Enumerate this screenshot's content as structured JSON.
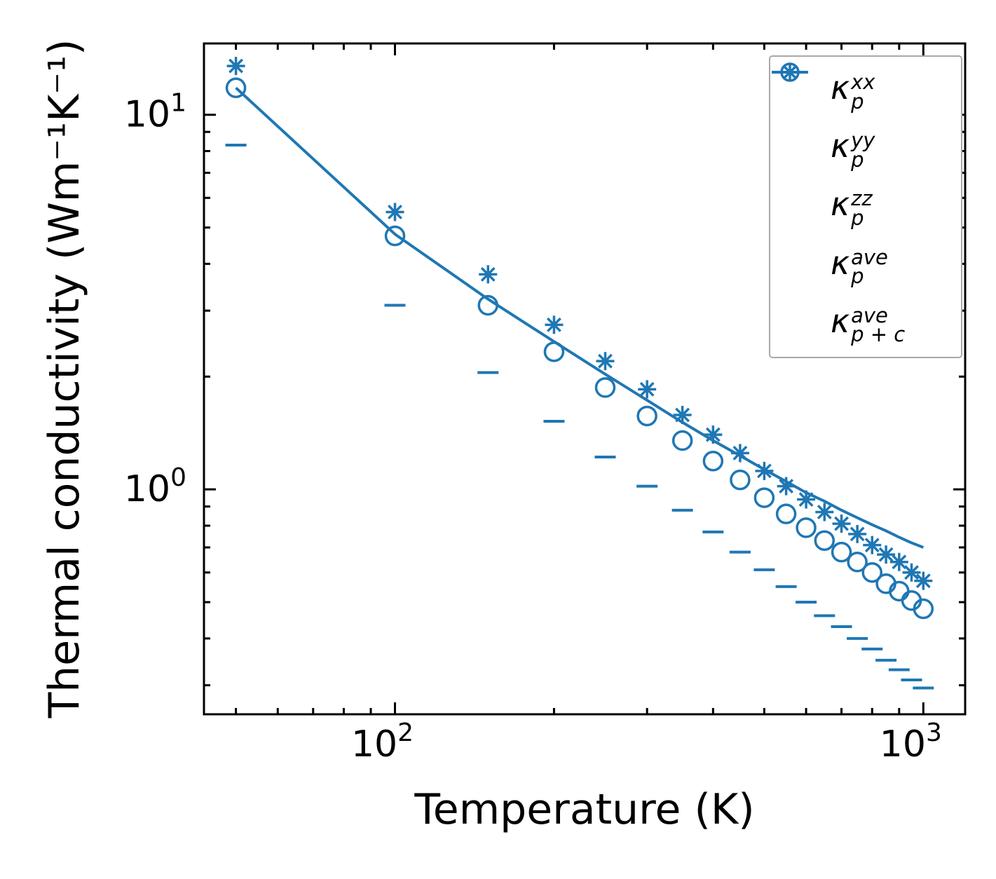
{
  "figure": {
    "accent_color": "#1f77b4",
    "background": "#ffffff"
  },
  "chart_data": {
    "type": "line",
    "title": "",
    "xlabel": "Temperature (K)",
    "ylabel": "Thermal conductivity (Wm⁻¹K⁻¹)",
    "xscale": "log",
    "yscale": "log",
    "xlim": [
      43.5,
      1200
    ],
    "ylim": [
      0.251,
      15.5
    ],
    "grid": false,
    "legend_position": "upper right",
    "x": [
      50,
      100,
      150,
      200,
      250,
      300,
      350,
      400,
      450,
      500,
      550,
      600,
      650,
      700,
      750,
      800,
      850,
      900,
      950,
      1000
    ],
    "series": [
      {
        "name": "kappa_p_xx",
        "marker": "plus",
        "line": false,
        "values": [
          13.5,
          5.5,
          3.75,
          2.75,
          2.2,
          1.85,
          1.58,
          1.4,
          1.25,
          1.12,
          1.02,
          0.94,
          0.87,
          0.81,
          0.76,
          0.71,
          0.67,
          0.64,
          0.6,
          0.57
        ]
      },
      {
        "name": "kappa_p_yy",
        "marker": "x",
        "line": false,
        "values": [
          13.5,
          5.5,
          3.75,
          2.75,
          2.2,
          1.85,
          1.58,
          1.4,
          1.25,
          1.12,
          1.02,
          0.94,
          0.87,
          0.81,
          0.76,
          0.71,
          0.67,
          0.64,
          0.6,
          0.57
        ]
      },
      {
        "name": "kappa_p_zz",
        "marker": "hline",
        "line": false,
        "values": [
          8.3,
          3.1,
          2.05,
          1.52,
          1.22,
          1.02,
          0.88,
          0.77,
          0.68,
          0.61,
          0.55,
          0.5,
          0.46,
          0.43,
          0.4,
          0.375,
          0.35,
          0.33,
          0.31,
          0.295
        ]
      },
      {
        "name": "kappa_p_ave",
        "marker": "circle",
        "line": false,
        "values": [
          11.8,
          4.75,
          3.1,
          2.33,
          1.87,
          1.57,
          1.35,
          1.19,
          1.06,
          0.95,
          0.86,
          0.79,
          0.73,
          0.68,
          0.64,
          0.6,
          0.56,
          0.535,
          0.505,
          0.48
        ]
      },
      {
        "name": "kappa_p_plus_c_ave",
        "marker": "none",
        "line": true,
        "values": [
          11.8,
          4.8,
          3.22,
          2.48,
          2.03,
          1.73,
          1.51,
          1.35,
          1.23,
          1.13,
          1.05,
          0.98,
          0.93,
          0.88,
          0.84,
          0.805,
          0.775,
          0.745,
          0.72,
          0.7
        ]
      }
    ]
  },
  "axes": {
    "x_ticks": [
      {
        "v": 100,
        "base": "10",
        "exp": "2"
      },
      {
        "v": 1000,
        "base": "10",
        "exp": "3"
      }
    ],
    "y_ticks": [
      {
        "v": 1,
        "base": "10",
        "exp": "0"
      },
      {
        "v": 10,
        "base": "10",
        "exp": "1"
      }
    ]
  },
  "legend": {
    "items": [
      {
        "symbol": "plus",
        "base": "κ",
        "sup": "xx",
        "sub": "p"
      },
      {
        "symbol": "x",
        "base": "κ",
        "sup": "yy",
        "sub": "p"
      },
      {
        "symbol": "dash",
        "base": "κ",
        "sup": "zz",
        "sub": "p"
      },
      {
        "symbol": "circle",
        "base": "κ",
        "sup": "ave",
        "sub": "p"
      },
      {
        "symbol": "line",
        "base": "κ",
        "sup": "ave",
        "sub": "p + c"
      }
    ]
  }
}
